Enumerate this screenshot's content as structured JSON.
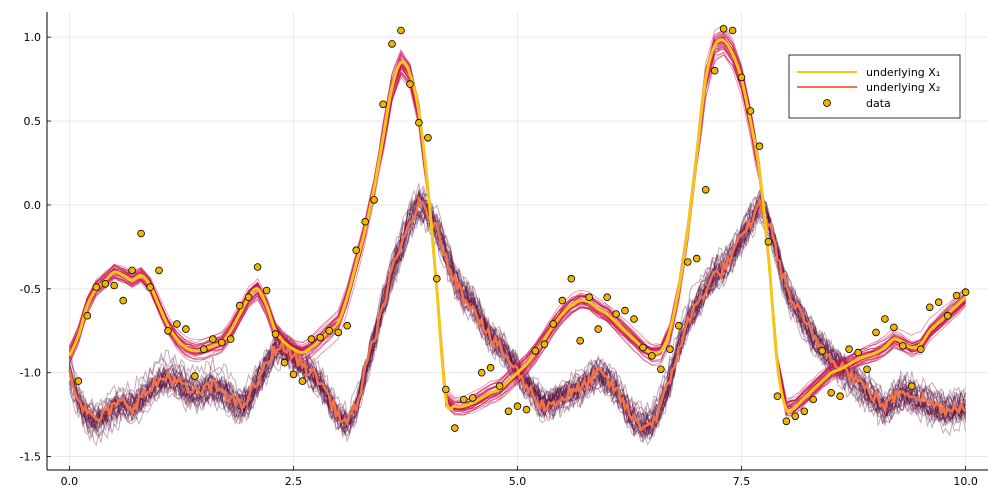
{
  "chart_data": {
    "type": "line",
    "title": "",
    "xlabel": "",
    "ylabel": "",
    "xlim": [
      -0.25,
      10.25
    ],
    "ylim": [
      -1.58,
      1.15
    ],
    "grid": true,
    "legend_placement": "top-right",
    "x_ticks": [
      {
        "value": 0.0,
        "label": "0.0"
      },
      {
        "value": 2.5,
        "label": "2.5"
      },
      {
        "value": 5.0,
        "label": "5.0"
      },
      {
        "value": 7.5,
        "label": "7.5"
      },
      {
        "value": 10.0,
        "label": "10.0"
      }
    ],
    "y_ticks": [
      {
        "value": 1.0,
        "label": "1.0"
      },
      {
        "value": 0.5,
        "label": "0.5"
      },
      {
        "value": 0.0,
        "label": "0.0"
      },
      {
        "value": -0.5,
        "label": "-0.5"
      },
      {
        "value": -1.0,
        "label": "-1.0"
      },
      {
        "value": -1.5,
        "label": "-1.5"
      }
    ],
    "legend": [
      {
        "label": "underlying X₁",
        "color": "#f5c518",
        "kind": "line"
      },
      {
        "label": "underlying X₂",
        "color": "#f0734e",
        "kind": "line"
      },
      {
        "label": "data",
        "color": "#f0b400",
        "kind": "marker"
      }
    ],
    "colors": {
      "x1_underlying": "#f5c518",
      "x2_underlying": "#f0734e",
      "x1_samples": "#c8104a",
      "x2_samples": "#5a0f3c",
      "data_fill": "#f0b400",
      "data_edge": "#000000"
    },
    "series": [
      {
        "id": "x1",
        "x": [
          0.0,
          0.1,
          0.2,
          0.3,
          0.4,
          0.5,
          0.6,
          0.7,
          0.8,
          0.9,
          1.0,
          1.1,
          1.2,
          1.3,
          1.4,
          1.5,
          1.6,
          1.7,
          1.8,
          1.9,
          2.0,
          2.1,
          2.2,
          2.3,
          2.4,
          2.5,
          2.6,
          2.7,
          2.8,
          2.9,
          3.0,
          3.1,
          3.2,
          3.3,
          3.4,
          3.5,
          3.6,
          3.7,
          3.8,
          3.9,
          4.0,
          4.1,
          4.2,
          4.3,
          4.4,
          4.5,
          4.6,
          4.7,
          4.8,
          4.9,
          5.0,
          5.1,
          5.2,
          5.3,
          5.4,
          5.5,
          5.6,
          5.7,
          5.8,
          5.9,
          6.0,
          6.1,
          6.2,
          6.3,
          6.4,
          6.5,
          6.6,
          6.7,
          6.8,
          6.9,
          7.0,
          7.1,
          7.2,
          7.3,
          7.4,
          7.5,
          7.6,
          7.7,
          7.8,
          7.9,
          8.0,
          8.1,
          8.2,
          8.3,
          8.4,
          8.5,
          8.6,
          8.7,
          8.8,
          8.9,
          9.0,
          9.1,
          9.2,
          9.3,
          9.4,
          9.5,
          9.6,
          9.7,
          9.8,
          9.9,
          10.0
        ],
        "y": [
          -0.9,
          -0.78,
          -0.6,
          -0.5,
          -0.45,
          -0.4,
          -0.42,
          -0.45,
          -0.42,
          -0.48,
          -0.6,
          -0.72,
          -0.8,
          -0.85,
          -0.87,
          -0.86,
          -0.84,
          -0.82,
          -0.75,
          -0.65,
          -0.55,
          -0.5,
          -0.6,
          -0.75,
          -0.82,
          -0.86,
          -0.88,
          -0.85,
          -0.8,
          -0.75,
          -0.7,
          -0.55,
          -0.35,
          -0.15,
          0.1,
          0.4,
          0.7,
          0.85,
          0.78,
          0.55,
          0.1,
          -0.5,
          -1.15,
          -1.2,
          -1.2,
          -1.18,
          -1.15,
          -1.12,
          -1.1,
          -1.05,
          -1.0,
          -0.95,
          -0.88,
          -0.8,
          -0.72,
          -0.65,
          -0.6,
          -0.57,
          -0.58,
          -0.62,
          -0.65,
          -0.7,
          -0.75,
          -0.8,
          -0.85,
          -0.88,
          -0.87,
          -0.75,
          -0.5,
          -0.15,
          0.3,
          0.75,
          0.95,
          0.98,
          0.9,
          0.75,
          0.5,
          0.2,
          -0.3,
          -0.95,
          -1.22,
          -1.2,
          -1.15,
          -1.1,
          -1.05,
          -1.0,
          -0.98,
          -0.95,
          -0.92,
          -0.9,
          -0.88,
          -0.85,
          -0.8,
          -0.82,
          -0.85,
          -0.83,
          -0.75,
          -0.7,
          -0.65,
          -0.6,
          -0.55
        ]
      },
      {
        "id": "x2",
        "x": [
          0.0,
          0.1,
          0.2,
          0.3,
          0.4,
          0.5,
          0.6,
          0.7,
          0.8,
          0.9,
          1.0,
          1.1,
          1.2,
          1.3,
          1.4,
          1.5,
          1.6,
          1.7,
          1.8,
          1.9,
          2.0,
          2.1,
          2.2,
          2.3,
          2.4,
          2.5,
          2.6,
          2.7,
          2.8,
          2.9,
          3.0,
          3.1,
          3.2,
          3.3,
          3.4,
          3.5,
          3.6,
          3.7,
          3.8,
          3.9,
          4.0,
          4.1,
          4.2,
          4.3,
          4.4,
          4.5,
          4.6,
          4.7,
          4.8,
          4.9,
          5.0,
          5.1,
          5.2,
          5.3,
          5.4,
          5.5,
          5.6,
          5.7,
          5.8,
          5.9,
          6.0,
          6.1,
          6.2,
          6.3,
          6.4,
          6.5,
          6.6,
          6.7,
          6.8,
          6.9,
          7.0,
          7.1,
          7.2,
          7.3,
          7.4,
          7.5,
          7.6,
          7.7,
          7.8,
          7.9,
          8.0,
          8.1,
          8.2,
          8.3,
          8.4,
          8.5,
          8.6,
          8.7,
          8.8,
          8.9,
          9.0,
          9.1,
          9.2,
          9.3,
          9.4,
          9.5,
          9.6,
          9.7,
          9.8,
          9.9,
          10.0
        ],
        "y": [
          -0.98,
          -1.15,
          -1.25,
          -1.28,
          -1.25,
          -1.2,
          -1.18,
          -1.2,
          -1.15,
          -1.1,
          -1.05,
          -1.02,
          -1.05,
          -1.1,
          -1.12,
          -1.1,
          -1.08,
          -1.1,
          -1.15,
          -1.2,
          -1.15,
          -1.05,
          -0.95,
          -0.85,
          -0.85,
          -0.9,
          -0.95,
          -1.0,
          -1.05,
          -1.15,
          -1.25,
          -1.3,
          -1.2,
          -1.0,
          -0.8,
          -0.6,
          -0.4,
          -0.25,
          -0.1,
          0.0,
          -0.05,
          -0.15,
          -0.3,
          -0.45,
          -0.55,
          -0.6,
          -0.7,
          -0.8,
          -0.85,
          -0.92,
          -1.0,
          -1.08,
          -1.15,
          -1.2,
          -1.18,
          -1.15,
          -1.12,
          -1.1,
          -1.05,
          -1.0,
          -1.05,
          -1.1,
          -1.2,
          -1.28,
          -1.32,
          -1.3,
          -1.2,
          -1.05,
          -0.85,
          -0.7,
          -0.6,
          -0.5,
          -0.42,
          -0.38,
          -0.3,
          -0.2,
          -0.1,
          0.0,
          -0.1,
          -0.3,
          -0.5,
          -0.6,
          -0.7,
          -0.78,
          -0.85,
          -0.9,
          -0.95,
          -1.0,
          -1.05,
          -1.1,
          -1.15,
          -1.2,
          -1.15,
          -1.1,
          -1.12,
          -1.15,
          -1.18,
          -1.2,
          -1.22,
          -1.2,
          -1.2
        ]
      },
      {
        "id": "data",
        "x": [
          0.1,
          0.2,
          0.3,
          0.4,
          0.5,
          0.6,
          0.7,
          0.8,
          0.9,
          1.0,
          1.1,
          1.2,
          1.3,
          1.4,
          1.5,
          1.6,
          1.7,
          1.8,
          1.9,
          2.0,
          2.1,
          2.2,
          2.3,
          2.4,
          2.5,
          2.6,
          2.7,
          2.8,
          2.9,
          3.0,
          3.1,
          3.2,
          3.3,
          3.4,
          3.5,
          3.6,
          3.7,
          3.8,
          3.9,
          4.0,
          4.1,
          4.2,
          4.3,
          4.4,
          4.5,
          4.6,
          4.7,
          4.8,
          4.9,
          5.0,
          5.1,
          5.2,
          5.3,
          5.4,
          5.5,
          5.6,
          5.7,
          5.8,
          5.9,
          6.0,
          6.1,
          6.2,
          6.3,
          6.4,
          6.5,
          6.6,
          6.7,
          6.8,
          6.9,
          7.0,
          7.1,
          7.2,
          7.3,
          7.4,
          7.5,
          7.6,
          7.7,
          7.8,
          7.9,
          8.0,
          8.1,
          8.2,
          8.3,
          8.4,
          8.5,
          8.6,
          8.7,
          8.8,
          8.9,
          9.0,
          9.1,
          9.2,
          9.3,
          9.4,
          9.5,
          9.6,
          9.7,
          9.8,
          9.9,
          10.0
        ],
        "y": [
          -1.05,
          -0.66,
          -0.49,
          -0.47,
          -0.48,
          -0.57,
          -0.39,
          -0.17,
          -0.49,
          -0.39,
          -0.75,
          -0.71,
          -0.74,
          -1.02,
          -0.86,
          -0.8,
          -0.82,
          -0.8,
          -0.6,
          -0.55,
          -0.37,
          -0.51,
          -0.77,
          -0.94,
          -1.01,
          -1.05,
          -0.8,
          -0.79,
          -0.75,
          -0.76,
          -0.72,
          -0.27,
          -0.1,
          0.03,
          0.6,
          0.96,
          1.04,
          0.72,
          0.49,
          0.4,
          -0.44,
          -1.1,
          -1.33,
          -1.16,
          -1.15,
          -1.0,
          -0.97,
          -1.08,
          -1.23,
          -1.2,
          -1.22,
          -0.87,
          -0.83,
          -0.71,
          -0.57,
          -0.44,
          -0.81,
          -0.55,
          -0.74,
          -0.55,
          -0.65,
          -0.63,
          -0.68,
          -0.85,
          -0.9,
          -0.98,
          -0.86,
          -0.72,
          -0.34,
          -0.32,
          0.09,
          0.8,
          1.05,
          1.04,
          0.76,
          0.56,
          0.35,
          -0.22,
          -1.14,
          -1.29,
          -1.26,
          -1.23,
          -1.16,
          -0.87,
          -1.12,
          -1.14,
          -0.86,
          -0.88,
          -0.98,
          -0.76,
          -0.68,
          -0.73,
          -0.84,
          -1.08,
          -0.86,
          -0.61,
          -0.58,
          -0.66,
          -0.54,
          -0.52
        ]
      }
    ],
    "posterior_samples": {
      "x1_count": 40,
      "x2_count": 30
    }
  }
}
